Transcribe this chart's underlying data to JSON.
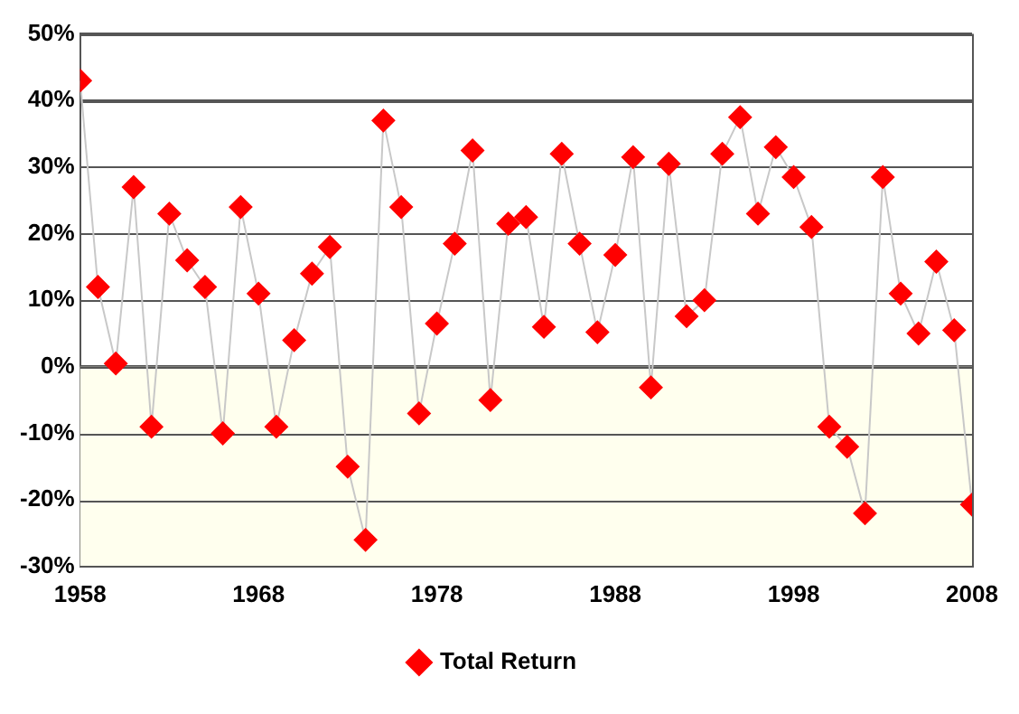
{
  "chart_data": {
    "type": "line",
    "x": [
      1958,
      1959,
      1960,
      1961,
      1962,
      1963,
      1964,
      1965,
      1966,
      1967,
      1968,
      1969,
      1970,
      1971,
      1972,
      1973,
      1974,
      1975,
      1976,
      1977,
      1978,
      1979,
      1980,
      1981,
      1982,
      1983,
      1984,
      1985,
      1986,
      1987,
      1988,
      1989,
      1990,
      1991,
      1992,
      1993,
      1994,
      1995,
      1996,
      1997,
      1998,
      1999,
      2000,
      2001,
      2002,
      2003,
      2004,
      2005,
      2006,
      2007,
      2008
    ],
    "series": [
      {
        "name": "Total Return",
        "color": "#ff0000",
        "values": [
          43,
          12,
          0.5,
          27,
          -9,
          23,
          16,
          12,
          -10,
          24,
          11,
          -9,
          4,
          14,
          18,
          -15,
          -26,
          37,
          24,
          -7,
          6.5,
          18.5,
          32.5,
          -5,
          21.5,
          22.5,
          6,
          32,
          18.5,
          5.2,
          16.8,
          31.5,
          -3.1,
          30.5,
          7.6,
          10,
          32,
          37.5,
          23,
          33,
          28.5,
          21,
          -9,
          -12,
          -22,
          28.5,
          11,
          5,
          15.8,
          5.5,
          -20.7
        ]
      }
    ],
    "xlim": [
      1958,
      2008
    ],
    "xticks": [
      1958,
      1968,
      1978,
      1988,
      1998,
      2008
    ],
    "ylim": [
      -30,
      50
    ],
    "yticks": [
      {
        "value": -30,
        "label": "-30%"
      },
      {
        "value": -20,
        "label": "-20%"
      },
      {
        "value": -10,
        "label": "-10%"
      },
      {
        "value": 0,
        "label": "0%"
      },
      {
        "value": 10,
        "label": "10%"
      },
      {
        "value": 20,
        "label": "20%"
      },
      {
        "value": 30,
        "label": "30%"
      },
      {
        "value": 40,
        "label": "40%"
      },
      {
        "value": 50,
        "label": "50%"
      }
    ],
    "bands": [
      {
        "axis": "y",
        "from": -30,
        "to": 0,
        "color": "#ffffee"
      }
    ],
    "grid": "y",
    "legend": "bottom",
    "marker": "diamond",
    "line_style": "solid"
  }
}
